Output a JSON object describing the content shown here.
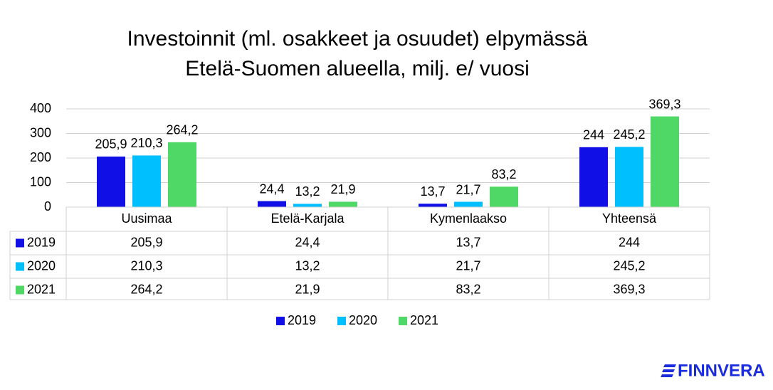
{
  "chart_data": {
    "type": "bar",
    "title": [
      "Investoinnit (ml. osakkeet ja osuudet) elpymässä",
      "Etelä-Suomen alueella, milj. e/ vuosi"
    ],
    "categories": [
      "Uusimaa",
      "Etelä-Karjala",
      "Kymenlaakso",
      "Yhteensä"
    ],
    "series": [
      {
        "name": "2019",
        "color": "#1010e6",
        "values": [
          205.9,
          24.4,
          13.7,
          244
        ],
        "value_labels": [
          "205,9",
          "24,4",
          "13,7",
          "244"
        ]
      },
      {
        "name": "2020",
        "color": "#00bfff",
        "values": [
          210.3,
          13.2,
          21.7,
          245.2
        ],
        "value_labels": [
          "210,3",
          "13,2",
          "21,7",
          "245,2"
        ]
      },
      {
        "name": "2021",
        "color": "#4fd865",
        "values": [
          264.2,
          21.9,
          83.2,
          369.3
        ],
        "value_labels": [
          "264,2",
          "21,9",
          "83,2",
          "369,3"
        ]
      }
    ],
    "ylim": [
      0,
      400
    ],
    "yticks": [
      0,
      100,
      200,
      300,
      400
    ],
    "grid": true,
    "data_table": true,
    "legend": "bottom"
  },
  "logo": "FINNVERA"
}
